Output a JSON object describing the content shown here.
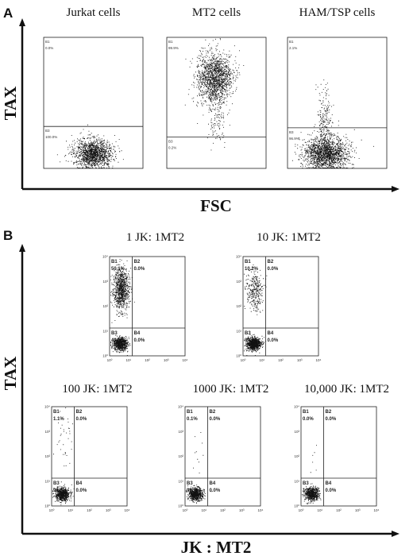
{
  "figure": {
    "panel_a_label": "A",
    "panel_b_label": "B"
  },
  "chart_data": [
    {
      "type": "scatter",
      "panel": "A",
      "xlabel": "FSC",
      "ylabel": "TAX",
      "plots": [
        {
          "title": "Jurkat cells",
          "gates": [
            "B1",
            "B3"
          ],
          "percents": [
            "0.0%",
            "100.0%"
          ],
          "populations": [
            {
              "gate": "B3",
              "percent": 100.0,
              "density": "dense"
            }
          ]
        },
        {
          "title": "MT2 cells",
          "gates": [
            "B1",
            "B3"
          ],
          "percents": [
            "99.9%",
            "0.2%"
          ],
          "populations": [
            {
              "gate": "B1",
              "percent": 99.9,
              "density": "dense"
            }
          ]
        },
        {
          "title": "HAM/TSP cells",
          "gates": [
            "B1",
            "B3"
          ],
          "percents": [
            "2.1%",
            "96.9%"
          ],
          "populations": [
            {
              "gate": "B3",
              "percent": 96.9,
              "density": "dense"
            },
            {
              "gate": "B1",
              "percent": 2.1,
              "density": "sparse"
            }
          ]
        }
      ]
    },
    {
      "type": "scatter",
      "panel": "B",
      "xlabel": "JK : MT2",
      "ylabel": "TAX",
      "tick_labels": [
        "10⁰",
        "10¹",
        "10²",
        "10³",
        "10⁴"
      ],
      "plots": [
        {
          "title": "1 JK: 1MT2",
          "gates": [
            "B1",
            "B2",
            "B3",
            "B4"
          ],
          "percents": [
            "50.1%",
            "0.0%",
            "49.9%",
            "0.0%"
          ]
        },
        {
          "title": "10 JK: 1MT2",
          "gates": [
            "B1",
            "B2",
            "B3",
            "B4"
          ],
          "percents": [
            "10.2%",
            "0.0%",
            "89.8%",
            "0.0%"
          ]
        },
        {
          "title": "100 JK: 1MT2",
          "gates": [
            "B1",
            "B2",
            "B3",
            "B4"
          ],
          "percents": [
            "1.1%",
            "0.0%",
            "98.9%",
            "0.0%"
          ]
        },
        {
          "title": "1000 JK: 1MT2",
          "gates": [
            "B1",
            "B2",
            "B3",
            "B4"
          ],
          "percents": [
            "0.1%",
            "0.0%",
            "99.9%",
            "0.0%"
          ]
        },
        {
          "title": "10,000 JK: 1MT2",
          "gates": [
            "B1",
            "B2",
            "B3",
            "B4"
          ],
          "percents": [
            "0.0%",
            "0.0%",
            "100.0%",
            "0.0%"
          ]
        }
      ]
    }
  ]
}
